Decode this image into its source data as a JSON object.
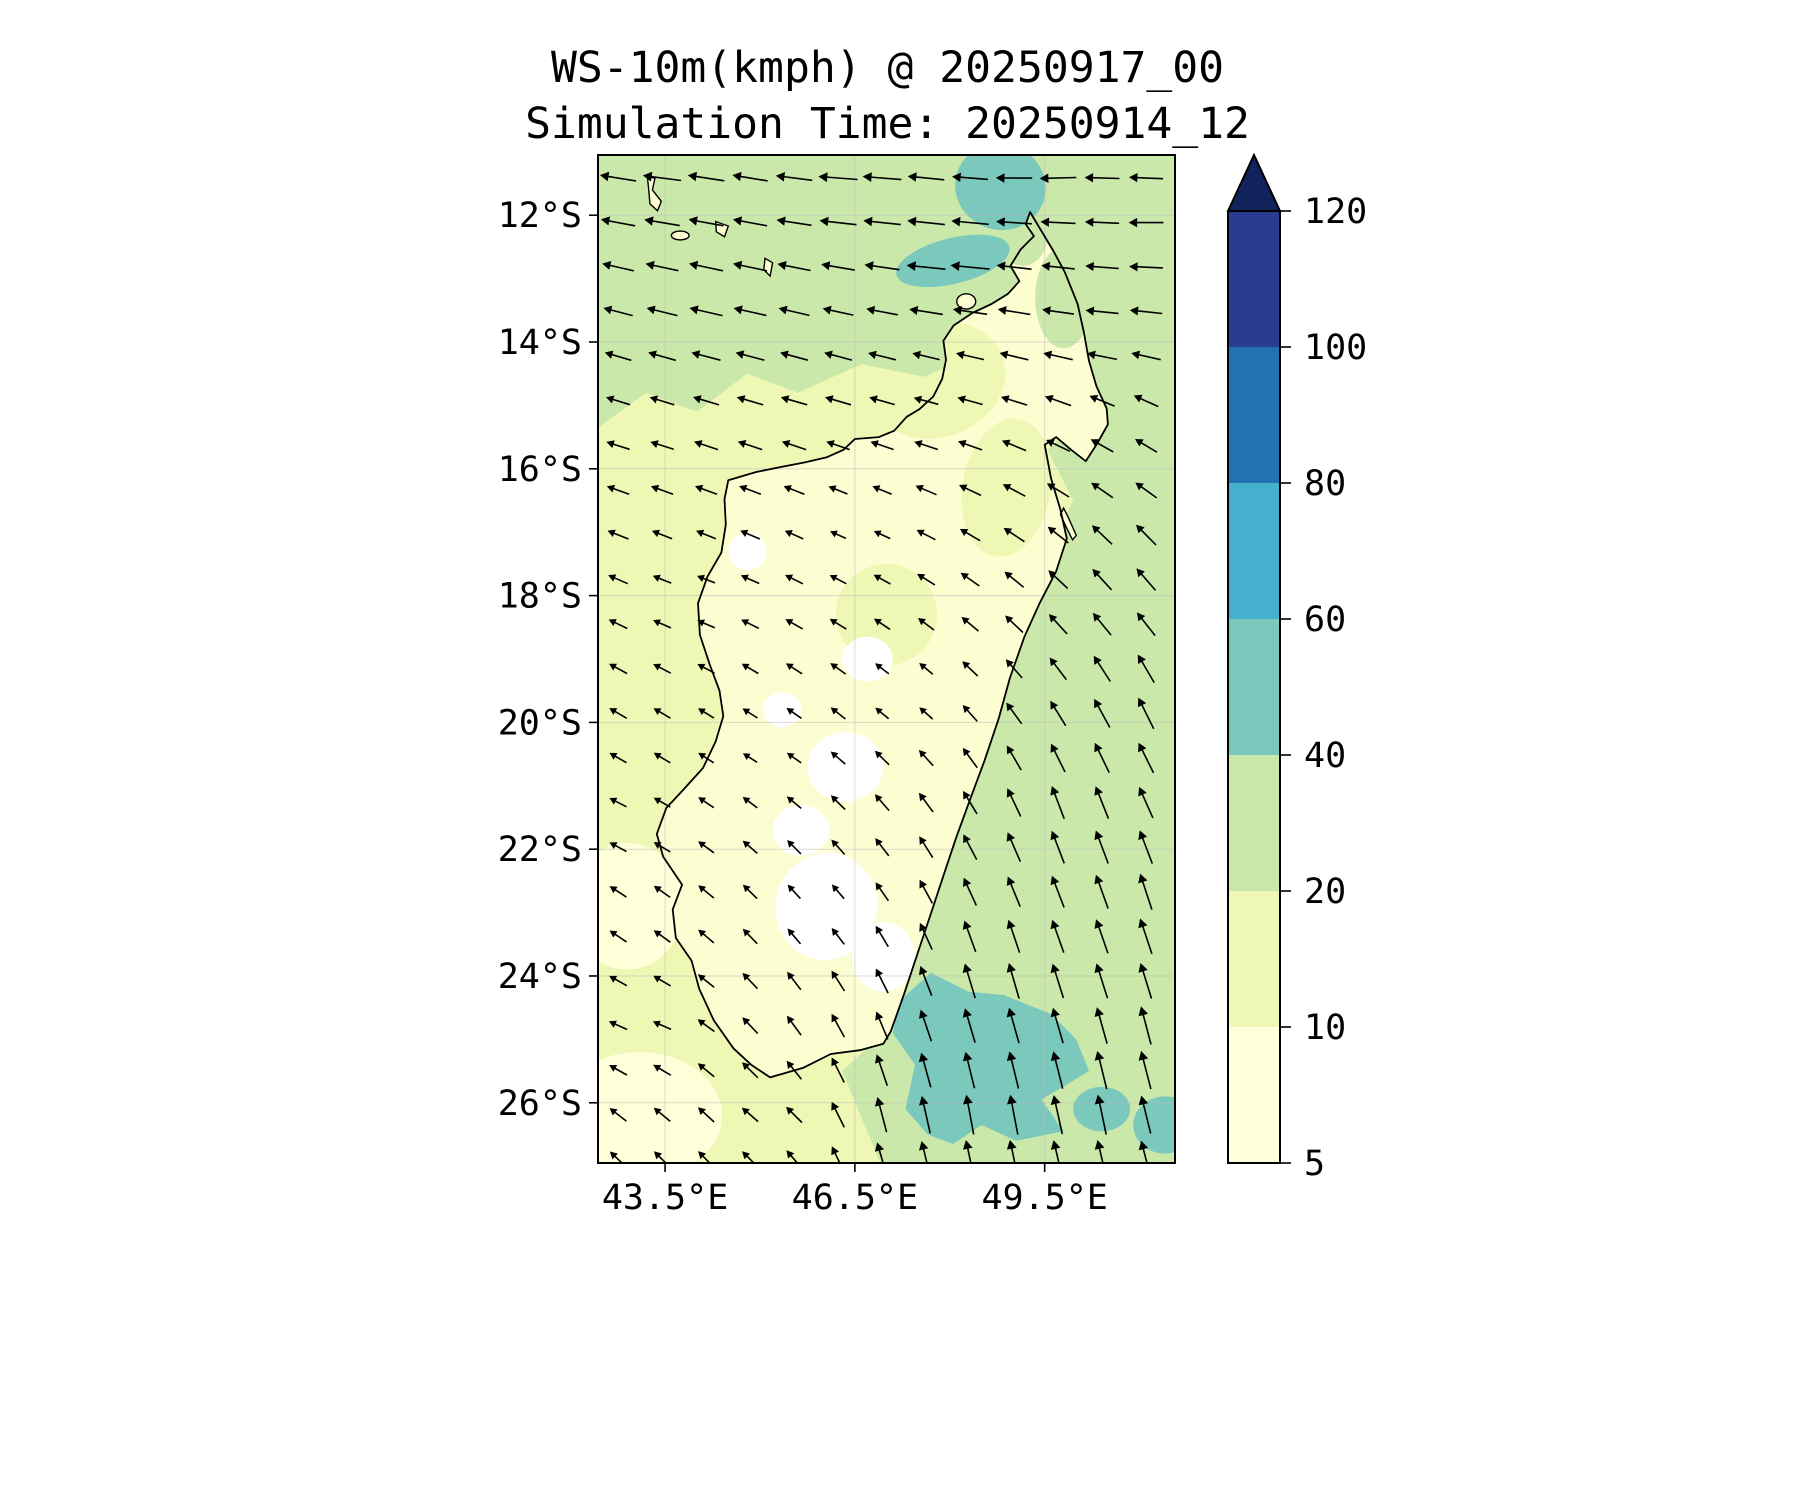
{
  "chart_data": {
    "type": "heatmap",
    "title": "WS-10m(kmph) @ 20250917_00",
    "subtitle": "Simulation Time: 20250914_12",
    "variable": "WS-10m",
    "units": "kmph",
    "valid_time": "20250917_00",
    "simulation_time": "20250914_12",
    "x_axis": {
      "range": [
        42.44,
        51.56
      ],
      "ticks": [
        {
          "label": "43.5°E",
          "value": 43.5
        },
        {
          "label": "46.5°E",
          "value": 46.5
        },
        {
          "label": "49.5°E",
          "value": 49.5
        }
      ]
    },
    "y_axis": {
      "range": [
        -26.95,
        -11.05
      ],
      "ticks": [
        {
          "label": "12°S",
          "value": -12
        },
        {
          "label": "14°S",
          "value": -14
        },
        {
          "label": "16°S",
          "value": -16
        },
        {
          "label": "18°S",
          "value": -18
        },
        {
          "label": "20°S",
          "value": -20
        },
        {
          "label": "22°S",
          "value": -22
        },
        {
          "label": "24°S",
          "value": -24
        },
        {
          "label": "26°S",
          "value": -26
        }
      ]
    },
    "colorbar": {
      "levels": [
        5,
        10,
        20,
        40,
        60,
        80,
        100,
        120
      ],
      "labels": [
        "5",
        "10",
        "20",
        "40",
        "60",
        "80",
        "100",
        "120"
      ],
      "segments": [
        {
          "range": "5-10",
          "color": "#ffffd9"
        },
        {
          "range": "10-20",
          "color": "#eef8b4"
        },
        {
          "range": "20-40",
          "color": "#cbe8ab"
        },
        {
          "range": "40-60",
          "color": "#7bc8bd"
        },
        {
          "range": "60-80",
          "color": "#45b0cd"
        },
        {
          "range": "80-100",
          "color": "#2272b2"
        },
        {
          "range": "100-120",
          "color": "#283d8f"
        }
      ],
      "over_color": "#12235c",
      "under_color": "#ffffff",
      "extend": "max"
    },
    "map": {
      "land_color": "#fdfdd2",
      "base_level": "10-20",
      "coastline": [
        [
          49.27,
          -11.95
        ],
        [
          49.45,
          -12.25
        ],
        [
          49.63,
          -12.55
        ],
        [
          49.82,
          -12.9
        ],
        [
          50.02,
          -13.4
        ],
        [
          50.12,
          -13.85
        ],
        [
          50.2,
          -14.3
        ],
        [
          50.32,
          -14.7
        ],
        [
          50.48,
          -15.05
        ],
        [
          50.5,
          -15.3
        ],
        [
          50.33,
          -15.6
        ],
        [
          50.15,
          -15.88
        ],
        [
          49.92,
          -15.7
        ],
        [
          49.68,
          -15.5
        ],
        [
          49.5,
          -15.62
        ],
        [
          49.6,
          -16.15
        ],
        [
          49.75,
          -16.65
        ],
        [
          49.85,
          -17.1
        ],
        [
          49.68,
          -17.62
        ],
        [
          49.42,
          -18.12
        ],
        [
          49.18,
          -18.65
        ],
        [
          48.95,
          -19.3
        ],
        [
          48.77,
          -19.95
        ],
        [
          48.55,
          -20.6
        ],
        [
          48.32,
          -21.22
        ],
        [
          48.1,
          -21.82
        ],
        [
          47.9,
          -22.42
        ],
        [
          47.7,
          -23.02
        ],
        [
          47.5,
          -23.62
        ],
        [
          47.28,
          -24.28
        ],
        [
          47.07,
          -24.87
        ],
        [
          46.95,
          -25.07
        ],
        [
          46.58,
          -25.17
        ],
        [
          46.12,
          -25.23
        ],
        [
          45.68,
          -25.45
        ],
        [
          45.16,
          -25.6
        ],
        [
          44.86,
          -25.4
        ],
        [
          44.58,
          -25.14
        ],
        [
          44.27,
          -24.7
        ],
        [
          44.04,
          -24.2
        ],
        [
          43.92,
          -23.76
        ],
        [
          43.67,
          -23.4
        ],
        [
          43.62,
          -22.95
        ],
        [
          43.77,
          -22.56
        ],
        [
          43.47,
          -22.12
        ],
        [
          43.37,
          -21.76
        ],
        [
          43.52,
          -21.35
        ],
        [
          43.8,
          -21.05
        ],
        [
          44.1,
          -20.72
        ],
        [
          44.3,
          -20.3
        ],
        [
          44.42,
          -19.9
        ],
        [
          44.36,
          -19.5
        ],
        [
          44.21,
          -19.1
        ],
        [
          44.05,
          -18.62
        ],
        [
          44.02,
          -18.12
        ],
        [
          44.17,
          -17.7
        ],
        [
          44.39,
          -17.32
        ],
        [
          44.46,
          -16.88
        ],
        [
          44.44,
          -16.48
        ],
        [
          44.5,
          -16.18
        ],
        [
          44.94,
          -16.05
        ],
        [
          45.34,
          -15.97
        ],
        [
          45.7,
          -15.9
        ],
        [
          46.05,
          -15.82
        ],
        [
          46.32,
          -15.7
        ],
        [
          46.5,
          -15.53
        ],
        [
          46.88,
          -15.5
        ],
        [
          47.12,
          -15.4
        ],
        [
          47.32,
          -15.18
        ],
        [
          47.52,
          -15.06
        ],
        [
          47.74,
          -14.86
        ],
        [
          47.88,
          -14.58
        ],
        [
          47.94,
          -14.28
        ],
        [
          47.9,
          -13.98
        ],
        [
          48.06,
          -13.74
        ],
        [
          48.36,
          -13.54
        ],
        [
          48.66,
          -13.4
        ],
        [
          48.92,
          -13.24
        ],
        [
          49.1,
          -13.04
        ],
        [
          48.96,
          -12.8
        ],
        [
          49.12,
          -12.54
        ],
        [
          49.33,
          -12.33
        ],
        [
          49.2,
          -12.14
        ],
        [
          49.27,
          -11.95
        ]
      ],
      "islands": [
        {
          "name": "grande-comore",
          "poly": [
            [
              43.22,
              -11.38
            ],
            [
              43.34,
              -11.42
            ],
            [
              43.3,
              -11.6
            ],
            [
              43.44,
              -11.78
            ],
            [
              43.38,
              -11.93
            ],
            [
              43.26,
              -11.82
            ],
            [
              43.24,
              -11.58
            ]
          ]
        },
        {
          "name": "moheli",
          "ellipse": [
            43.74,
            -12.32,
            0.14,
            0.07,
            0
          ]
        },
        {
          "name": "anjouan",
          "poly": [
            [
              44.3,
              -12.1
            ],
            [
              44.5,
              -12.17
            ],
            [
              44.44,
              -12.34
            ],
            [
              44.31,
              -12.26
            ]
          ]
        },
        {
          "name": "mayotte",
          "poly": [
            [
              45.08,
              -12.68
            ],
            [
              45.2,
              -12.75
            ],
            [
              45.16,
              -12.96
            ],
            [
              45.06,
              -12.86
            ]
          ]
        },
        {
          "name": "nosy-be",
          "ellipse": [
            48.26,
            -13.36,
            0.15,
            0.12,
            0
          ]
        },
        {
          "name": "sainte-marie",
          "poly": [
            [
              49.8,
              -16.62
            ],
            [
              49.88,
              -16.78
            ],
            [
              50.0,
              -17.05
            ],
            [
              49.94,
              -17.12
            ],
            [
              49.84,
              -16.92
            ],
            [
              49.75,
              -16.72
            ]
          ]
        }
      ],
      "ocean_regions": [
        {
          "name": "north-band",
          "level": "20-40",
          "poly": [
            [
              42.44,
              -11.05
            ],
            [
              51.56,
              -11.05
            ],
            [
              51.56,
              -15.2
            ],
            [
              50.4,
              -14.9
            ],
            [
              49.6,
              -14.25
            ],
            [
              48.6,
              -14.1
            ],
            [
              47.6,
              -14.55
            ],
            [
              46.6,
              -14.35
            ],
            [
              45.6,
              -14.8
            ],
            [
              44.8,
              -14.5
            ],
            [
              44.0,
              -15.1
            ],
            [
              43.2,
              -14.8
            ],
            [
              42.44,
              -15.35
            ]
          ]
        },
        {
          "name": "east-band",
          "level": "20-40",
          "poly": [
            [
              51.56,
              -14.5
            ],
            [
              51.56,
              -26.95
            ],
            [
              46.9,
              -26.95
            ],
            [
              46.3,
              -25.5
            ],
            [
              46.9,
              -24.95
            ],
            [
              47.3,
              -23.6
            ],
            [
              47.9,
              -22.1
            ],
            [
              48.4,
              -20.7
            ],
            [
              48.85,
              -19.3
            ],
            [
              49.3,
              -18.1
            ],
            [
              49.7,
              -17.0
            ],
            [
              49.95,
              -16.5
            ],
            [
              49.55,
              -15.7
            ],
            [
              50.1,
              -15.2
            ],
            [
              50.35,
              -14.6
            ],
            [
              50.9,
              -14.6
            ]
          ]
        },
        {
          "name": "pale-sw-corner",
          "level": "5-10",
          "ellipse": [
            43.1,
            -26.2,
            1.3,
            1.0,
            0
          ]
        },
        {
          "name": "pale-west-coast",
          "level": "5-10",
          "ellipse": [
            42.9,
            -22.9,
            0.9,
            1.0,
            0
          ]
        },
        {
          "name": "ne-windstreak",
          "level": "40-60",
          "ellipse": [
            48.05,
            -12.72,
            0.92,
            0.36,
            -14
          ]
        },
        {
          "name": "north-top-patch",
          "level": "40-60",
          "ellipse": [
            48.8,
            -11.55,
            0.72,
            0.68,
            20
          ]
        },
        {
          "name": "se-windmax",
          "level": "40-60",
          "poly": [
            [
              47.2,
              -24.4
            ],
            [
              47.7,
              -23.95
            ],
            [
              48.3,
              -24.25
            ],
            [
              48.85,
              -24.3
            ],
            [
              49.6,
              -24.6
            ],
            [
              50.0,
              -25.0
            ],
            [
              50.2,
              -25.5
            ],
            [
              49.45,
              -25.95
            ],
            [
              49.8,
              -26.45
            ],
            [
              49.05,
              -26.6
            ],
            [
              48.5,
              -26.35
            ],
            [
              48.05,
              -26.65
            ],
            [
              47.65,
              -26.5
            ],
            [
              47.3,
              -26.1
            ],
            [
              47.45,
              -25.4
            ],
            [
              47.1,
              -24.9
            ]
          ]
        },
        {
          "name": "se-blob-2",
          "level": "40-60",
          "ellipse": [
            50.4,
            -26.1,
            0.45,
            0.35,
            0
          ]
        },
        {
          "name": "se-blob-3",
          "level": "40-60",
          "ellipse": [
            51.4,
            -26.35,
            0.5,
            0.45,
            0
          ]
        }
      ],
      "land_regions": [
        {
          "name": "north-pale-1",
          "level": "10-20",
          "ellipse": [
            47.8,
            -14.6,
            1.1,
            0.9,
            -20
          ]
        },
        {
          "name": "north-pale-2",
          "level": "10-20",
          "ellipse": [
            48.9,
            -16.3,
            0.7,
            1.1,
            10
          ]
        },
        {
          "name": "central-pale",
          "level": "10-20",
          "ellipse": [
            47.0,
            -18.3,
            0.8,
            0.8,
            0
          ]
        },
        {
          "name": "ne-green-1",
          "level": "20-40",
          "ellipse": [
            49.8,
            -13.3,
            0.45,
            0.8,
            0
          ]
        },
        {
          "name": "tip-green",
          "level": "20-40",
          "ellipse": [
            49.15,
            -12.3,
            0.4,
            0.5,
            0
          ]
        },
        {
          "name": "calm-white-1",
          "level": "under",
          "ellipse": [
            46.35,
            -20.7,
            0.6,
            0.55,
            0
          ]
        },
        {
          "name": "calm-white-2",
          "level": "under",
          "ellipse": [
            46.05,
            -22.9,
            0.8,
            0.85,
            15
          ]
        },
        {
          "name": "calm-white-3",
          "level": "under",
          "ellipse": [
            46.95,
            -23.7,
            0.5,
            0.55,
            0
          ]
        },
        {
          "name": "calm-white-4",
          "level": "under",
          "ellipse": [
            45.65,
            -21.7,
            0.45,
            0.4,
            0
          ]
        },
        {
          "name": "calm-white-5",
          "level": "under",
          "ellipse": [
            46.7,
            -19.0,
            0.4,
            0.35,
            0
          ]
        },
        {
          "name": "calm-white-6",
          "level": "under",
          "ellipse": [
            45.35,
            -19.8,
            0.3,
            0.28,
            0
          ]
        },
        {
          "name": "calm-white-7",
          "level": "under",
          "ellipse": [
            44.8,
            -17.3,
            0.3,
            0.3,
            0
          ]
        }
      ]
    },
    "wind_field": {
      "arrow_color": "#000000",
      "anchors": [
        [
          43.5,
          -11.3,
          -1.05,
          0.12
        ],
        [
          46.5,
          -11.5,
          -1.1,
          0.05
        ],
        [
          49.5,
          -11.3,
          -1.0,
          -0.08
        ],
        [
          51.3,
          -12.3,
          -0.95,
          -0.05
        ],
        [
          44.5,
          -13.2,
          -0.95,
          0.2
        ],
        [
          48.0,
          -12.8,
          -1.15,
          0.08
        ],
        [
          50.6,
          -13.5,
          -0.9,
          0.05
        ],
        [
          43.0,
          -15.5,
          -0.6,
          0.18
        ],
        [
          45.5,
          -14.8,
          -0.7,
          0.2
        ],
        [
          47.8,
          -14.8,
          -0.62,
          0.15
        ],
        [
          50.9,
          -15.6,
          -0.55,
          0.35
        ],
        [
          46.5,
          -17.0,
          -0.35,
          0.15
        ],
        [
          44.0,
          -18.0,
          -0.45,
          0.15
        ],
        [
          50.9,
          -17.5,
          -0.5,
          0.62
        ],
        [
          47.3,
          -19.5,
          -0.3,
          0.22
        ],
        [
          45.0,
          -20.5,
          -0.35,
          0.2
        ],
        [
          51.1,
          -19.8,
          -0.4,
          0.88
        ],
        [
          49.9,
          -21.5,
          -0.3,
          0.95
        ],
        [
          43.0,
          -21.5,
          -0.45,
          0.2
        ],
        [
          46.0,
          -22.8,
          -0.3,
          0.32
        ],
        [
          51.2,
          -22.8,
          -0.3,
          1.0
        ],
        [
          48.7,
          -24.1,
          -0.25,
          1.0
        ],
        [
          43.2,
          -24.8,
          -0.5,
          0.15
        ],
        [
          45.2,
          -26.3,
          -0.45,
          0.3
        ],
        [
          47.3,
          -26.3,
          -0.2,
          1.05
        ],
        [
          48.6,
          -26.3,
          -0.15,
          1.15
        ],
        [
          50.3,
          -26.2,
          -0.2,
          1.1
        ],
        [
          51.3,
          -25.0,
          -0.25,
          1.05
        ]
      ]
    }
  }
}
